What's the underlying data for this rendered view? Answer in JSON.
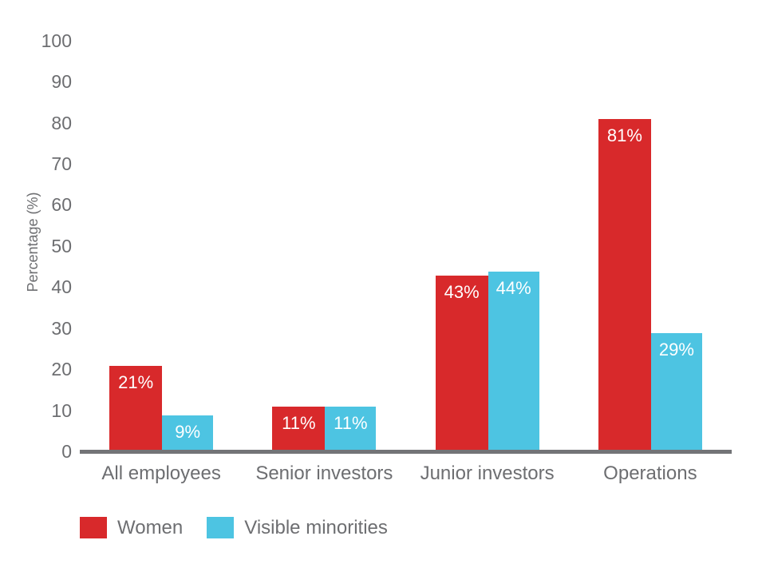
{
  "chart_data": {
    "type": "bar",
    "title": "",
    "categories": [
      "All employees",
      "Senior investors",
      "Junior investors",
      "Operations"
    ],
    "series": [
      {
        "name": "Women",
        "color": "#d8292b",
        "values": [
          21,
          11,
          43,
          81
        ],
        "labels": [
          "21%",
          "11%",
          "43%",
          "81%"
        ]
      },
      {
        "name": "Visible minorities",
        "color": "#4dc4e2",
        "values": [
          9,
          11,
          44,
          29
        ],
        "labels": [
          "9%",
          "11%",
          "44%",
          "29%"
        ]
      }
    ],
    "xlabel": "",
    "ylabel": "Percentage (%)",
    "yticks": [
      0,
      10,
      20,
      30,
      40,
      50,
      60,
      70,
      80,
      90,
      100
    ],
    "ylim": [
      0,
      100
    ],
    "grid": false,
    "legend_position": "bottom",
    "value_label_format": "{value}%"
  },
  "colors": {
    "background": "#ffffff",
    "axis_line": "#737477",
    "tick_text": "#6d6e71",
    "category_text": "#6d6e71",
    "value_label_text": "#ffffff",
    "women": "#d8292b",
    "visible_minorities": "#4dc4e2"
  }
}
